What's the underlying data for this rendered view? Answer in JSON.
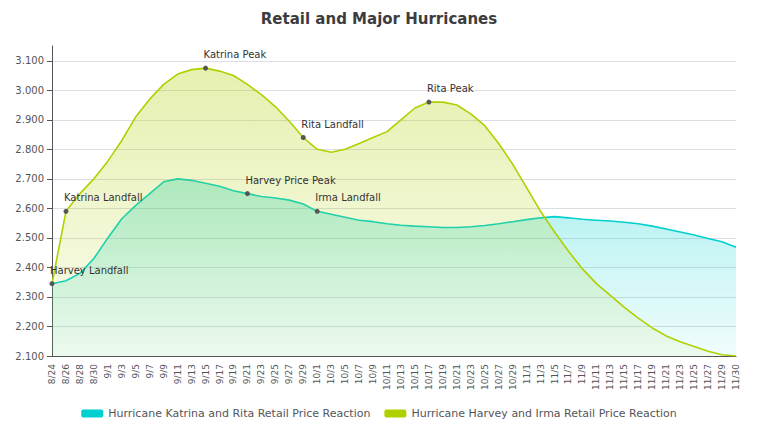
{
  "chart_data": {
    "type": "area",
    "title": "Retail and Major Hurricanes",
    "categories": [
      "8/24",
      "8/26",
      "8/28",
      "8/30",
      "9/1",
      "9/3",
      "9/5",
      "9/7",
      "9/9",
      "9/11",
      "9/13",
      "9/15",
      "9/17",
      "9/19",
      "9/21",
      "9/23",
      "9/25",
      "9/27",
      "9/29",
      "10/1",
      "10/3",
      "10/5",
      "10/7",
      "10/9",
      "10/11",
      "10/13",
      "10/15",
      "10/17",
      "10/19",
      "10/21",
      "10/23",
      "10/25",
      "10/27",
      "10/29",
      "11/1",
      "11/3",
      "11/5",
      "11/7",
      "11/9",
      "11/11",
      "11/13",
      "11/15",
      "11/17",
      "11/19",
      "11/21",
      "11/23",
      "11/25",
      "11/27",
      "11/29",
      "11/30"
    ],
    "series": [
      {
        "name": "Hurricane Katrina and Rita Retail Price Reaction",
        "color": "#00d0d0",
        "values": [
          2.345,
          2.355,
          2.38,
          2.43,
          2.5,
          2.565,
          2.61,
          2.65,
          2.69,
          2.7,
          2.695,
          2.685,
          2.675,
          2.66,
          2.65,
          2.64,
          2.635,
          2.628,
          2.615,
          2.59,
          2.58,
          2.57,
          2.56,
          2.555,
          2.548,
          2.543,
          2.54,
          2.538,
          2.535,
          2.535,
          2.538,
          2.542,
          2.548,
          2.555,
          2.562,
          2.568,
          2.572,
          2.568,
          2.563,
          2.56,
          2.557,
          2.553,
          2.548,
          2.54,
          2.53,
          2.52,
          2.51,
          2.498,
          2.487,
          2.468
        ]
      },
      {
        "name": "Hurricane Harvey and Irma Retail Price Reaction",
        "color": "#b0d000",
        "values": [
          2.345,
          2.59,
          2.65,
          2.7,
          2.76,
          2.83,
          2.91,
          2.97,
          3.02,
          3.055,
          3.07,
          3.075,
          3.065,
          3.05,
          3.02,
          2.985,
          2.945,
          2.895,
          2.84,
          2.8,
          2.79,
          2.8,
          2.82,
          2.84,
          2.86,
          2.9,
          2.94,
          2.96,
          2.96,
          2.95,
          2.92,
          2.88,
          2.82,
          2.75,
          2.67,
          2.59,
          2.52,
          2.455,
          2.395,
          2.345,
          2.305,
          2.265,
          2.228,
          2.195,
          2.168,
          2.148,
          2.132,
          2.116,
          2.104,
          2.1
        ]
      }
    ],
    "ylim": [
      2.1,
      3.15
    ],
    "yticks": [
      {
        "value": 2.1,
        "label": "2.100"
      },
      {
        "value": 2.2,
        "label": "2.200"
      },
      {
        "value": 2.3,
        "label": "2.300"
      },
      {
        "value": 2.4,
        "label": "2.400"
      },
      {
        "value": 2.5,
        "label": "2.500"
      },
      {
        "value": 2.6,
        "label": "2.600"
      },
      {
        "value": 2.7,
        "label": "2.700"
      },
      {
        "value": 2.8,
        "label": "2.800"
      },
      {
        "value": 2.9,
        "label": "2.900"
      },
      {
        "value": 3.0,
        "label": "3.000"
      },
      {
        "value": 3.1,
        "label": "3.100"
      }
    ],
    "grid": true,
    "legend": "bottom",
    "annotations": [
      {
        "text": "Harvey Landfall",
        "x": "8/24",
        "y": 2.345
      },
      {
        "text": "Katrina Landfall",
        "x": "8/26",
        "y": 2.59
      },
      {
        "text": "Katrina Peak",
        "x": "9/15",
        "y": 3.075
      },
      {
        "text": "Harvey Price Peak",
        "x": "9/21",
        "y": 2.65
      },
      {
        "text": "Rita Landfall",
        "x": "9/29",
        "y": 2.84
      },
      {
        "text": "Rita Peak",
        "x": "10/17",
        "y": 2.96
      },
      {
        "text": "Irma Landfall",
        "x": "10/1",
        "y": 2.59
      }
    ]
  }
}
